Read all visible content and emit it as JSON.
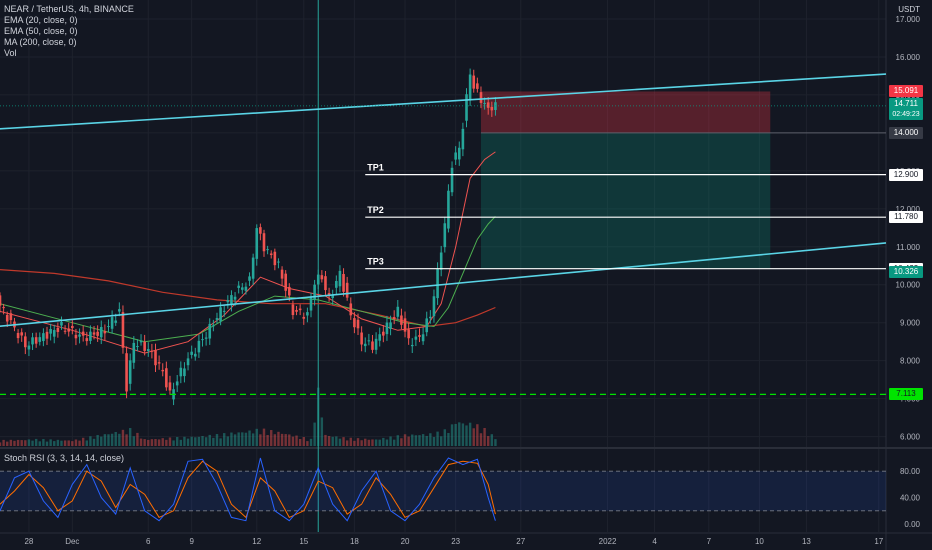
{
  "header": {
    "symbol_line": "NEAR / TetherUS, 4h, BINANCE",
    "indicators": [
      "EMA (20, close, 0)",
      "EMA (50, close, 0)",
      "MA (200, close, 0)",
      "Vol"
    ],
    "currency": "USDT"
  },
  "rsi_label": "Stoch RSI (3, 3, 14, 14, close)",
  "colors": {
    "background": "#131722",
    "up": "#26a69a",
    "down": "#ef5350",
    "trendline": "#5ad4e6",
    "ema20": "#ef5350",
    "ema50": "#4caf50",
    "ma200": "#c0392b",
    "stop_zone": "rgba(242,54,69,0.3)",
    "profit_zone": "rgba(8,153,129,0.25)",
    "support": "#00e400",
    "rsi_k": "#2962ff",
    "rsi_d": "#ff6d00"
  },
  "chart_data": {
    "type": "candlestick",
    "y_axis_ticks": [
      6,
      7,
      8,
      9,
      10,
      11,
      12,
      13,
      14,
      15,
      16,
      17
    ],
    "y_axis_labels": [
      "6.000",
      "7.000",
      "8.000",
      "9.000",
      "10.000",
      "11.000",
      "12.000",
      "13.000",
      "14.000",
      "15.000",
      "16.000",
      "17.000"
    ],
    "x_axis_labels": [
      {
        "label": "28",
        "i": 8
      },
      {
        "label": "Dec",
        "i": 20
      },
      {
        "label": "6",
        "i": 41
      },
      {
        "label": "9",
        "i": 53
      },
      {
        "label": "12",
        "i": 71
      },
      {
        "label": "15",
        "i": 84
      },
      {
        "label": "18",
        "i": 98
      },
      {
        "label": "20",
        "i": 112
      },
      {
        "label": "23",
        "i": 126
      },
      {
        "label": "27",
        "i": 144
      },
      {
        "label": "2022",
        "i": 168
      },
      {
        "label": "4",
        "i": 181
      },
      {
        "label": "7",
        "i": 196
      },
      {
        "label": "10",
        "i": 210
      },
      {
        "label": "13",
        "i": 223
      },
      {
        "label": "17",
        "i": 243
      }
    ],
    "close_path": [
      [
        0,
        9.6
      ],
      [
        4,
        9.0
      ],
      [
        8,
        8.4
      ],
      [
        12,
        8.6
      ],
      [
        18,
        8.9
      ],
      [
        24,
        8.6
      ],
      [
        30,
        8.8
      ],
      [
        34,
        9.3
      ],
      [
        36,
        7.3
      ],
      [
        38,
        8.5
      ],
      [
        42,
        8.3
      ],
      [
        46,
        7.7
      ],
      [
        48,
        7.1
      ],
      [
        52,
        7.9
      ],
      [
        58,
        8.7
      ],
      [
        62,
        9.3
      ],
      [
        66,
        9.8
      ],
      [
        70,
        10.1
      ],
      [
        72,
        11.5
      ],
      [
        74,
        11.0
      ],
      [
        78,
        10.5
      ],
      [
        82,
        9.3
      ],
      [
        86,
        9.2
      ],
      [
        88,
        10.1
      ],
      [
        90,
        10.2
      ],
      [
        92,
        9.6
      ],
      [
        95,
        10.3
      ],
      [
        98,
        9.2
      ],
      [
        101,
        8.5
      ],
      [
        104,
        8.4
      ],
      [
        108,
        8.9
      ],
      [
        111,
        9.3
      ],
      [
        114,
        8.5
      ],
      [
        117,
        8.6
      ],
      [
        120,
        9.2
      ],
      [
        122,
        10.3
      ],
      [
        124,
        11.6
      ],
      [
        126,
        13.2
      ],
      [
        128,
        13.6
      ],
      [
        129,
        14.2
      ],
      [
        131,
        15.6
      ],
      [
        132,
        15.2
      ],
      [
        134,
        14.9
      ],
      [
        136,
        14.6
      ],
      [
        137,
        14.711
      ]
    ],
    "volume_path": [
      [
        0,
        0.1
      ],
      [
        10,
        0.12
      ],
      [
        20,
        0.1
      ],
      [
        36,
        0.3
      ],
      [
        38,
        0.22
      ],
      [
        40,
        0.12
      ],
      [
        52,
        0.16
      ],
      [
        60,
        0.2
      ],
      [
        70,
        0.28
      ],
      [
        72,
        0.3
      ],
      [
        78,
        0.24
      ],
      [
        86,
        0.12
      ],
      [
        88,
        1.0
      ],
      [
        90,
        0.2
      ],
      [
        96,
        0.14
      ],
      [
        104,
        0.12
      ],
      [
        112,
        0.2
      ],
      [
        120,
        0.22
      ],
      [
        124,
        0.3
      ],
      [
        126,
        0.45
      ],
      [
        128,
        0.42
      ],
      [
        131,
        0.4
      ],
      [
        134,
        0.3
      ],
      [
        137,
        0.15
      ]
    ],
    "ema20_path": [
      [
        0,
        9.3
      ],
      [
        20,
        8.8
      ],
      [
        40,
        8.2
      ],
      [
        52,
        8.5
      ],
      [
        62,
        9.2
      ],
      [
        72,
        10.2
      ],
      [
        80,
        9.9
      ],
      [
        90,
        9.7
      ],
      [
        100,
        9.1
      ],
      [
        110,
        8.8
      ],
      [
        118,
        8.9
      ],
      [
        122,
        9.5
      ],
      [
        126,
        11.0
      ],
      [
        130,
        12.8
      ],
      [
        134,
        13.3
      ],
      [
        137,
        13.5
      ]
    ],
    "ema50_path": [
      [
        0,
        9.5
      ],
      [
        20,
        9.0
      ],
      [
        40,
        8.5
      ],
      [
        55,
        8.7
      ],
      [
        66,
        9.3
      ],
      [
        76,
        9.7
      ],
      [
        88,
        9.6
      ],
      [
        100,
        9.3
      ],
      [
        112,
        9.0
      ],
      [
        120,
        8.9
      ],
      [
        124,
        9.4
      ],
      [
        128,
        10.3
      ],
      [
        132,
        11.2
      ],
      [
        135,
        11.6
      ],
      [
        137,
        11.8
      ]
    ],
    "ma200_path": [
      [
        0,
        10.4
      ],
      [
        15,
        10.3
      ],
      [
        30,
        10.1
      ],
      [
        45,
        9.8
      ],
      [
        60,
        9.6
      ],
      [
        75,
        9.5
      ],
      [
        90,
        9.5
      ],
      [
        105,
        9.2
      ],
      [
        118,
        8.9
      ],
      [
        126,
        9.0
      ],
      [
        132,
        9.2
      ],
      [
        137,
        9.4
      ]
    ],
    "trendline_upper": [
      [
        -1,
        14.1
      ],
      [
        245,
        15.55
      ]
    ],
    "trendline_lower": [
      [
        -1,
        8.9
      ],
      [
        245,
        11.1
      ]
    ],
    "level_lines": [
      {
        "label": "TP1",
        "value": 12.9,
        "i_start": 101
      },
      {
        "label": "TP2",
        "value": 11.78,
        "i_start": 101
      },
      {
        "label": "TP3",
        "value": 10.423,
        "i_start": 101
      }
    ],
    "support_value": 7.113,
    "entry_value": 14.0,
    "position_box": {
      "i_start": 133,
      "i_end": 213,
      "stop": 15.091,
      "entry": 14.0,
      "target": 10.423
    },
    "price_badges": [
      {
        "text": "15.091",
        "value": 15.091,
        "color": "#f23645"
      },
      {
        "text": "14.711",
        "sub": "02:49:23",
        "value": 14.711,
        "color": "#089981"
      },
      {
        "text": "14.000",
        "value": 14.0,
        "color": "#363a45"
      },
      {
        "text": "12.900",
        "value": 12.9,
        "color": "#ffffff",
        "text_color": "#131722"
      },
      {
        "text": "11.780",
        "value": 11.78,
        "color": "#ffffff",
        "text_color": "#131722"
      },
      {
        "text": "10.423",
        "value": 10.423,
        "color": "#ffffff",
        "text_color": "#131722"
      },
      {
        "text": "10.326",
        "value": 10.326,
        "color": "#089981"
      },
      {
        "text": "7.113",
        "value": 7.113,
        "color": "#00e400",
        "text_color": "#131722"
      }
    ],
    "x_range": [
      0,
      245
    ],
    "y_range": [
      5.7,
      17.5
    ],
    "last_index": 137
  },
  "stoch_rsi": {
    "y_ticks": [
      0,
      40,
      80
    ],
    "y_labels": [
      "0.00",
      "40.00",
      "80.00"
    ],
    "band": [
      20,
      80
    ],
    "k_path": [
      [
        0,
        20
      ],
      [
        4,
        70
      ],
      [
        8,
        80
      ],
      [
        12,
        35
      ],
      [
        16,
        10
      ],
      [
        20,
        60
      ],
      [
        24,
        90
      ],
      [
        28,
        40
      ],
      [
        32,
        15
      ],
      [
        36,
        85
      ],
      [
        40,
        20
      ],
      [
        44,
        5
      ],
      [
        48,
        30
      ],
      [
        52,
        95
      ],
      [
        56,
        98
      ],
      [
        60,
        60
      ],
      [
        64,
        10
      ],
      [
        68,
        5
      ],
      [
        72,
        100
      ],
      [
        76,
        20
      ],
      [
        80,
        5
      ],
      [
        84,
        30
      ],
      [
        88,
        85
      ],
      [
        92,
        30
      ],
      [
        96,
        5
      ],
      [
        100,
        50
      ],
      [
        104,
        80
      ],
      [
        108,
        20
      ],
      [
        112,
        5
      ],
      [
        116,
        30
      ],
      [
        120,
        70
      ],
      [
        124,
        100
      ],
      [
        128,
        90
      ],
      [
        132,
        98
      ],
      [
        135,
        40
      ],
      [
        137,
        5
      ]
    ],
    "d_path": [
      [
        0,
        30
      ],
      [
        4,
        50
      ],
      [
        8,
        75
      ],
      [
        12,
        55
      ],
      [
        16,
        20
      ],
      [
        20,
        35
      ],
      [
        24,
        80
      ],
      [
        28,
        65
      ],
      [
        32,
        25
      ],
      [
        36,
        60
      ],
      [
        40,
        45
      ],
      [
        44,
        10
      ],
      [
        48,
        20
      ],
      [
        52,
        70
      ],
      [
        56,
        95
      ],
      [
        60,
        80
      ],
      [
        64,
        30
      ],
      [
        68,
        10
      ],
      [
        72,
        70
      ],
      [
        76,
        50
      ],
      [
        80,
        10
      ],
      [
        84,
        20
      ],
      [
        88,
        65
      ],
      [
        92,
        55
      ],
      [
        96,
        15
      ],
      [
        100,
        30
      ],
      [
        104,
        70
      ],
      [
        108,
        45
      ],
      [
        112,
        10
      ],
      [
        116,
        20
      ],
      [
        120,
        55
      ],
      [
        124,
        90
      ],
      [
        128,
        95
      ],
      [
        132,
        92
      ],
      [
        135,
        60
      ],
      [
        137,
        15
      ]
    ]
  }
}
